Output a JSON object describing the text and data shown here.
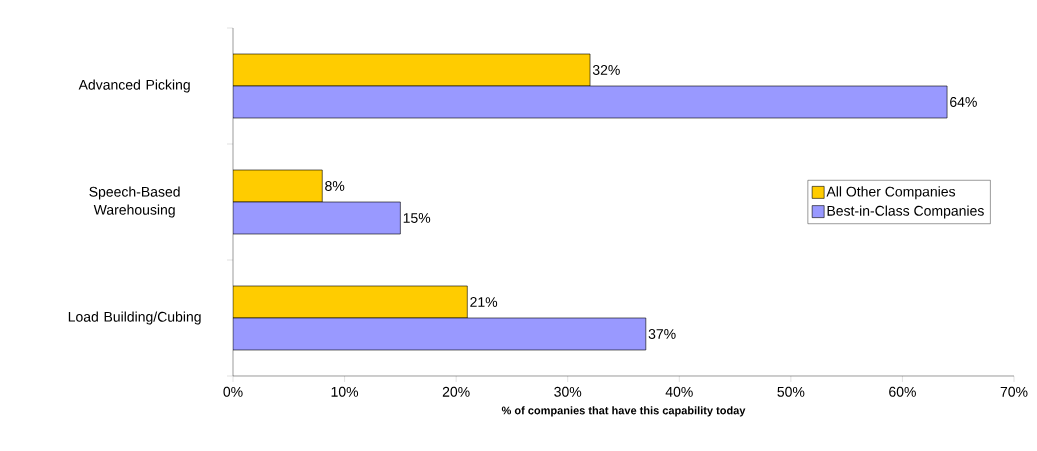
{
  "chart_data": {
    "type": "bar",
    "orientation": "horizontal",
    "categories": [
      "Advanced Picking",
      "Speech-Based Warehousing",
      "Load Building/Cubing"
    ],
    "series": [
      {
        "name": "All Other Companies",
        "color": "#ffcc00",
        "values": [
          32,
          8,
          21
        ],
        "value_labels": [
          "32%",
          "8%",
          "21%"
        ]
      },
      {
        "name": "Best-in-Class Companies",
        "color": "#9999ff",
        "values": [
          64,
          15,
          37
        ],
        "value_labels": [
          "64%",
          "15%",
          "37%"
        ]
      }
    ],
    "xlabel": "% of companies that have this capability today",
    "xlim": [
      0,
      70
    ],
    "xticks": [
      {
        "value": 0,
        "label": "0%"
      },
      {
        "value": 10,
        "label": "10%"
      },
      {
        "value": 20,
        "label": "20%"
      },
      {
        "value": 30,
        "label": "30%"
      },
      {
        "value": 40,
        "label": "40%"
      },
      {
        "value": 50,
        "label": "50%"
      },
      {
        "value": 60,
        "label": "60%"
      },
      {
        "value": 70,
        "label": "70%"
      }
    ],
    "grid": false,
    "legend": "right"
  }
}
